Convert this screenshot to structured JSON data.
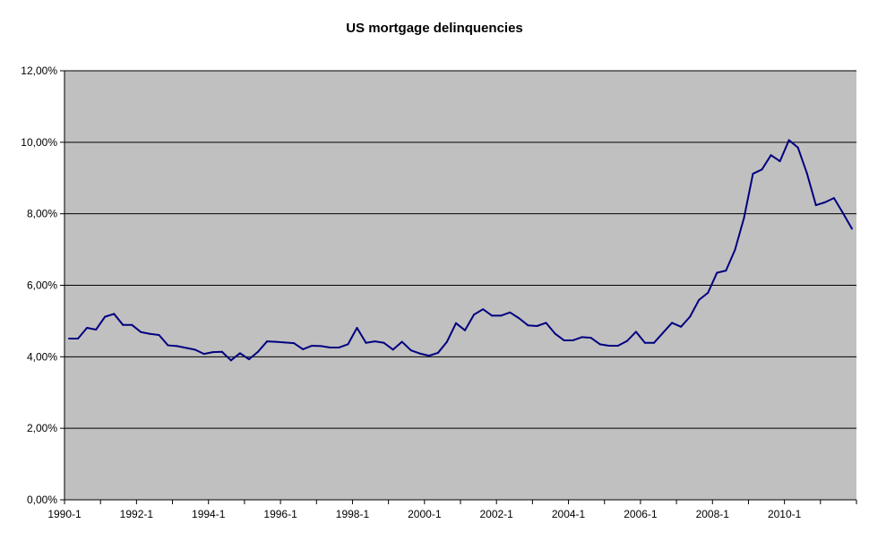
{
  "chart_data": {
    "type": "line",
    "title": "US mortgage delinquencies",
    "xlabel": "",
    "ylabel": "",
    "ylim": [
      0,
      12
    ],
    "y_ticks": [
      "0,00%",
      "2,00%",
      "4,00%",
      "6,00%",
      "8,00%",
      "10,00%",
      "12,00%"
    ],
    "x_tick_labels": [
      "1990-1",
      "1992-1",
      "1994-1",
      "1996-1",
      "1998-1",
      "2000-1",
      "2002-1",
      "2004-1",
      "2006-1",
      "2008-1",
      "2010-1"
    ],
    "grid": "horizontal",
    "legend": "none",
    "colors": {
      "plot_bg": "#c0c0c0",
      "line": "#000080",
      "grid": "#000000"
    },
    "series": [
      {
        "x": [
          "1990-1",
          "1990-2",
          "1990-3",
          "1990-4",
          "1991-1",
          "1991-2",
          "1991-3",
          "1991-4",
          "1992-1",
          "1992-2",
          "1992-3",
          "1992-4",
          "1993-1",
          "1993-2",
          "1993-3",
          "1993-4",
          "1994-1",
          "1994-2",
          "1994-3",
          "1994-4",
          "1995-1",
          "1995-2",
          "1995-3",
          "1995-4",
          "1996-1",
          "1996-2",
          "1996-3",
          "1996-4",
          "1997-1",
          "1997-2",
          "1997-3",
          "1997-4",
          "1998-1",
          "1998-2",
          "1998-3",
          "1998-4",
          "1999-1",
          "1999-2",
          "1999-3",
          "1999-4",
          "2000-1",
          "2000-2",
          "2000-3",
          "2000-4",
          "2001-1",
          "2001-2",
          "2001-3",
          "2001-4",
          "2002-1",
          "2002-2",
          "2002-3",
          "2002-4",
          "2003-1",
          "2003-2",
          "2003-3",
          "2003-4",
          "2004-1",
          "2004-2",
          "2004-3",
          "2004-4",
          "2005-1",
          "2005-2",
          "2005-3",
          "2005-4",
          "2006-1",
          "2006-2",
          "2006-3",
          "2006-4",
          "2007-1",
          "2007-2",
          "2007-3",
          "2007-4",
          "2008-1",
          "2008-2",
          "2008-3",
          "2008-4",
          "2009-1",
          "2009-2",
          "2009-3",
          "2009-4",
          "2010-1",
          "2010-2",
          "2010-3",
          "2010-4",
          "2011-1",
          "2011-2",
          "2011-3",
          "2011-4"
        ],
        "values": [
          4.51,
          4.51,
          4.81,
          4.76,
          5.12,
          5.2,
          4.89,
          4.89,
          4.69,
          4.64,
          4.61,
          4.32,
          4.3,
          4.25,
          4.2,
          4.08,
          4.13,
          4.14,
          3.9,
          4.1,
          3.93,
          4.14,
          4.43,
          4.42,
          4.4,
          4.38,
          4.21,
          4.31,
          4.3,
          4.26,
          4.26,
          4.35,
          4.81,
          4.39,
          4.43,
          4.39,
          4.2,
          4.42,
          4.18,
          4.09,
          4.03,
          4.11,
          4.42,
          4.94,
          4.74,
          5.18,
          5.33,
          5.15,
          5.15,
          5.24,
          5.08,
          4.88,
          4.86,
          4.95,
          4.65,
          4.46,
          4.46,
          4.55,
          4.53,
          4.35,
          4.31,
          4.31,
          4.44,
          4.7,
          4.39,
          4.39,
          4.67,
          4.95,
          4.84,
          5.12,
          5.59,
          5.79,
          6.35,
          6.41,
          6.99,
          7.88,
          9.12,
          9.24,
          9.64,
          9.47,
          10.06,
          9.85,
          9.13,
          8.24,
          8.32,
          8.44,
          8.02,
          7.58
        ]
      }
    ]
  }
}
